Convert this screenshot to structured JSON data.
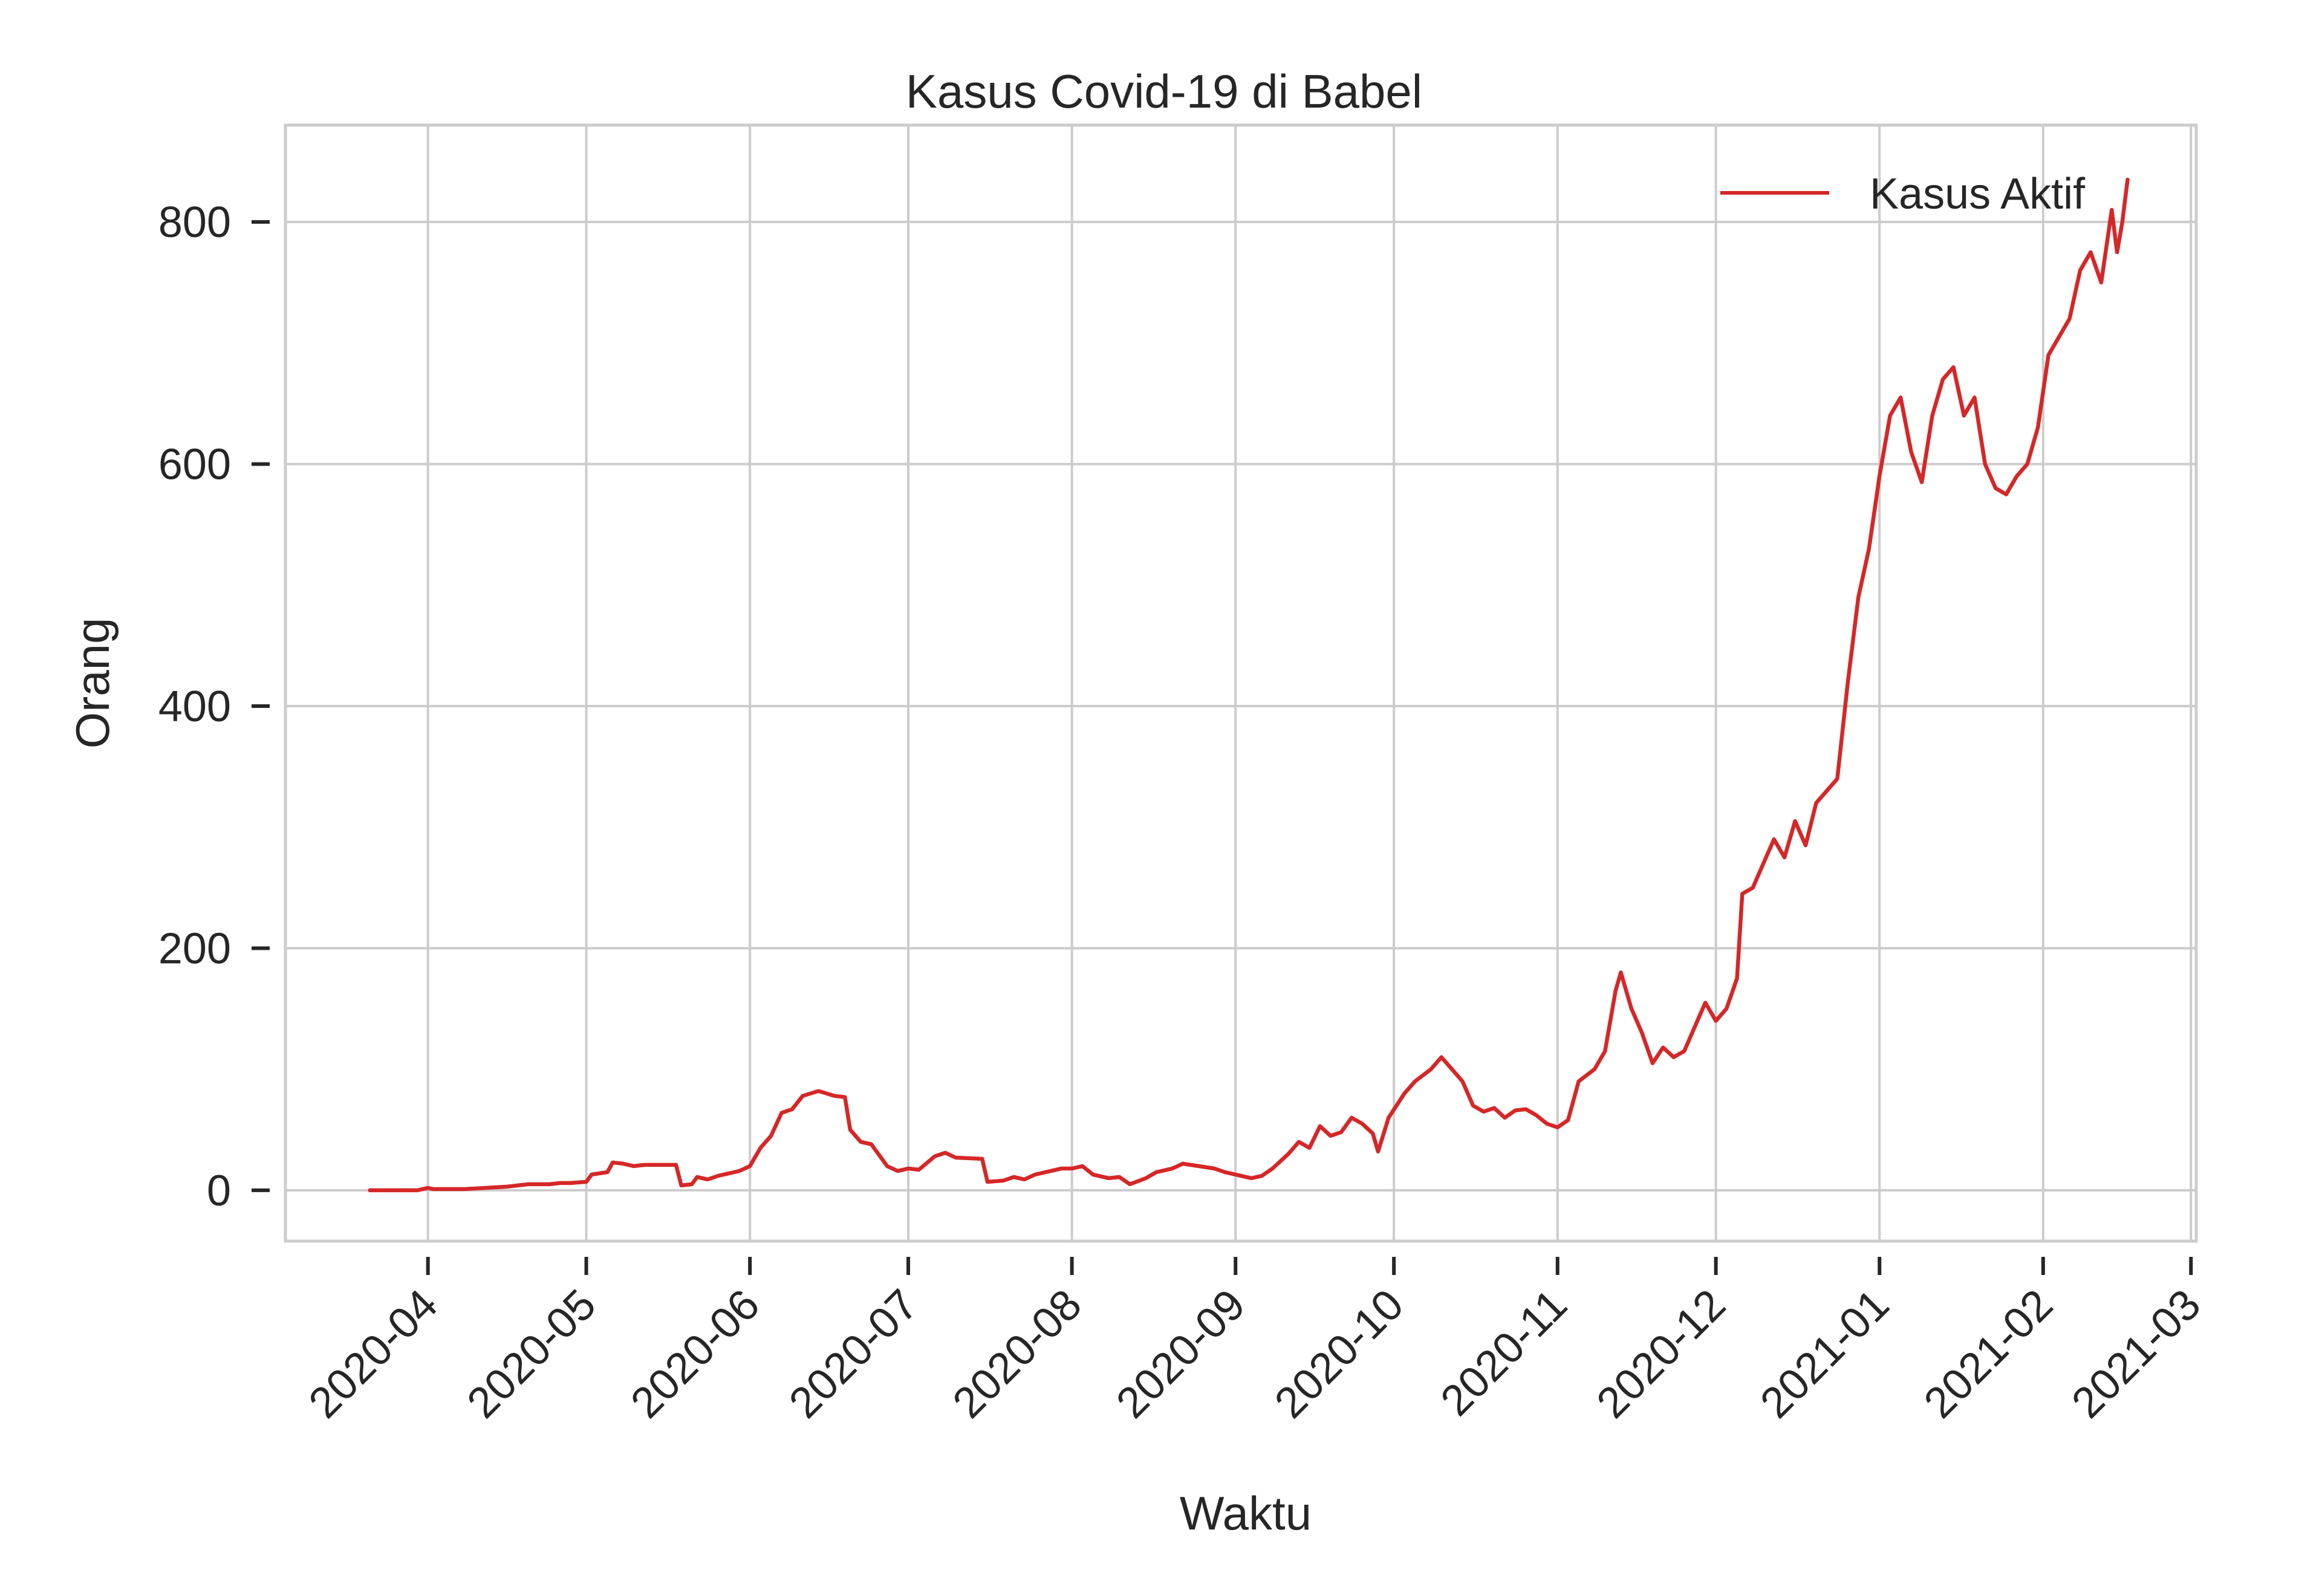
{
  "chart_data": {
    "type": "line",
    "title": "Kasus Covid-19 di Babel",
    "xlabel": "Waktu",
    "ylabel": "Orang",
    "x_range": [
      "2020-03-05",
      "2021-03-02"
    ],
    "ylim": [
      -42,
      880
    ],
    "yticks": [
      0,
      200,
      400,
      600,
      800
    ],
    "xticks": [
      "2020-04-01",
      "2020-05-01",
      "2020-06-01",
      "2020-07-01",
      "2020-08-01",
      "2020-09-01",
      "2020-10-01",
      "2020-11-01",
      "2020-12-01",
      "2021-01-01",
      "2021-02-01",
      "2021-03-01"
    ],
    "xtick_labels": [
      "2020-04",
      "2020-05",
      "2020-06",
      "2020-07",
      "2020-08",
      "2020-09",
      "2020-10",
      "2020-11",
      "2020-12",
      "2021-01",
      "2021-02",
      "2021-03"
    ],
    "grid": true,
    "legend": {
      "position": "top-right",
      "entries": [
        "Kasus Aktif"
      ]
    },
    "colors": {
      "line": "#d62728",
      "grid": "#cccccc",
      "spine": "#cccccc",
      "text": "#262626"
    },
    "series": [
      {
        "name": "Kasus Aktif",
        "points": [
          [
            "2020-03-21",
            0
          ],
          [
            "2020-03-30",
            0
          ],
          [
            "2020-04-01",
            2
          ],
          [
            "2020-04-02",
            1
          ],
          [
            "2020-04-08",
            1
          ],
          [
            "2020-04-12",
            2
          ],
          [
            "2020-04-16",
            3
          ],
          [
            "2020-04-20",
            5
          ],
          [
            "2020-04-24",
            5
          ],
          [
            "2020-04-26",
            6
          ],
          [
            "2020-04-28",
            6
          ],
          [
            "2020-05-01",
            7
          ],
          [
            "2020-05-02",
            13
          ],
          [
            "2020-05-05",
            15
          ],
          [
            "2020-05-06",
            23
          ],
          [
            "2020-05-08",
            22
          ],
          [
            "2020-05-10",
            20
          ],
          [
            "2020-05-12",
            21
          ],
          [
            "2020-05-18",
            21
          ],
          [
            "2020-05-19",
            4
          ],
          [
            "2020-05-21",
            5
          ],
          [
            "2020-05-22",
            11
          ],
          [
            "2020-05-24",
            9
          ],
          [
            "2020-05-26",
            12
          ],
          [
            "2020-05-28",
            14
          ],
          [
            "2020-05-30",
            16
          ],
          [
            "2020-06-01",
            20
          ],
          [
            "2020-06-03",
            35
          ],
          [
            "2020-06-05",
            45
          ],
          [
            "2020-06-07",
            64
          ],
          [
            "2020-06-09",
            67
          ],
          [
            "2020-06-11",
            78
          ],
          [
            "2020-06-14",
            82
          ],
          [
            "2020-06-17",
            78
          ],
          [
            "2020-06-19",
            77
          ],
          [
            "2020-06-20",
            50
          ],
          [
            "2020-06-22",
            40
          ],
          [
            "2020-06-24",
            38
          ],
          [
            "2020-06-27",
            20
          ],
          [
            "2020-06-29",
            16
          ],
          [
            "2020-07-01",
            18
          ],
          [
            "2020-07-03",
            17
          ],
          [
            "2020-07-06",
            28
          ],
          [
            "2020-07-08",
            31
          ],
          [
            "2020-07-10",
            27
          ],
          [
            "2020-07-15",
            26
          ],
          [
            "2020-07-16",
            7
          ],
          [
            "2020-07-19",
            8
          ],
          [
            "2020-07-21",
            11
          ],
          [
            "2020-07-23",
            9
          ],
          [
            "2020-07-25",
            13
          ],
          [
            "2020-07-28",
            16
          ],
          [
            "2020-07-30",
            18
          ],
          [
            "2020-08-01",
            18
          ],
          [
            "2020-08-03",
            20
          ],
          [
            "2020-08-05",
            13
          ],
          [
            "2020-08-08",
            10
          ],
          [
            "2020-08-10",
            11
          ],
          [
            "2020-08-12",
            5
          ],
          [
            "2020-08-15",
            10
          ],
          [
            "2020-08-17",
            15
          ],
          [
            "2020-08-20",
            18
          ],
          [
            "2020-08-22",
            22
          ],
          [
            "2020-08-25",
            20
          ],
          [
            "2020-08-28",
            18
          ],
          [
            "2020-08-30",
            15
          ],
          [
            "2020-09-01",
            13
          ],
          [
            "2020-09-04",
            10
          ],
          [
            "2020-09-06",
            12
          ],
          [
            "2020-09-08",
            18
          ],
          [
            "2020-09-11",
            30
          ],
          [
            "2020-09-13",
            40
          ],
          [
            "2020-09-15",
            35
          ],
          [
            "2020-09-17",
            53
          ],
          [
            "2020-09-19",
            45
          ],
          [
            "2020-09-21",
            48
          ],
          [
            "2020-09-23",
            60
          ],
          [
            "2020-09-25",
            55
          ],
          [
            "2020-09-27",
            47
          ],
          [
            "2020-09-28",
            32
          ],
          [
            "2020-09-30",
            60
          ],
          [
            "2020-10-03",
            80
          ],
          [
            "2020-10-05",
            90
          ],
          [
            "2020-10-08",
            100
          ],
          [
            "2020-10-10",
            110
          ],
          [
            "2020-10-12",
            100
          ],
          [
            "2020-10-14",
            90
          ],
          [
            "2020-10-16",
            70
          ],
          [
            "2020-10-18",
            65
          ],
          [
            "2020-10-20",
            68
          ],
          [
            "2020-10-22",
            60
          ],
          [
            "2020-10-24",
            66
          ],
          [
            "2020-10-26",
            67
          ],
          [
            "2020-10-28",
            62
          ],
          [
            "2020-10-30",
            55
          ],
          [
            "2020-11-01",
            52
          ],
          [
            "2020-11-03",
            58
          ],
          [
            "2020-11-05",
            90
          ],
          [
            "2020-11-08",
            100
          ],
          [
            "2020-11-10",
            115
          ],
          [
            "2020-11-12",
            165
          ],
          [
            "2020-11-13",
            180
          ],
          [
            "2020-11-15",
            150
          ],
          [
            "2020-11-17",
            130
          ],
          [
            "2020-11-19",
            105
          ],
          [
            "2020-11-21",
            118
          ],
          [
            "2020-11-23",
            110
          ],
          [
            "2020-11-25",
            115
          ],
          [
            "2020-11-27",
            135
          ],
          [
            "2020-11-29",
            155
          ],
          [
            "2020-12-01",
            140
          ],
          [
            "2020-12-03",
            150
          ],
          [
            "2020-12-05",
            175
          ],
          [
            "2020-12-06",
            245
          ],
          [
            "2020-12-08",
            250
          ],
          [
            "2020-12-10",
            270
          ],
          [
            "2020-12-12",
            290
          ],
          [
            "2020-12-14",
            275
          ],
          [
            "2020-12-16",
            305
          ],
          [
            "2020-12-18",
            285
          ],
          [
            "2020-12-20",
            320
          ],
          [
            "2020-12-22",
            330
          ],
          [
            "2020-12-24",
            340
          ],
          [
            "2020-12-26",
            420
          ],
          [
            "2020-12-28",
            490
          ],
          [
            "2020-12-30",
            530
          ],
          [
            "2021-01-01",
            590
          ],
          [
            "2021-01-03",
            640
          ],
          [
            "2021-01-05",
            655
          ],
          [
            "2021-01-07",
            610
          ],
          [
            "2021-01-09",
            585
          ],
          [
            "2021-01-11",
            640
          ],
          [
            "2021-01-13",
            670
          ],
          [
            "2021-01-15",
            680
          ],
          [
            "2021-01-17",
            640
          ],
          [
            "2021-01-19",
            655
          ],
          [
            "2021-01-21",
            600
          ],
          [
            "2021-01-23",
            580
          ],
          [
            "2021-01-25",
            575
          ],
          [
            "2021-01-27",
            590
          ],
          [
            "2021-01-29",
            600
          ],
          [
            "2021-01-31",
            630
          ],
          [
            "2021-02-02",
            690
          ],
          [
            "2021-02-04",
            705
          ],
          [
            "2021-02-06",
            720
          ],
          [
            "2021-02-08",
            760
          ],
          [
            "2021-02-10",
            775
          ],
          [
            "2021-02-12",
            750
          ],
          [
            "2021-02-14",
            810
          ],
          [
            "2021-02-15",
            775
          ],
          [
            "2021-02-16",
            800
          ],
          [
            "2021-02-17",
            835
          ]
        ]
      }
    ]
  }
}
